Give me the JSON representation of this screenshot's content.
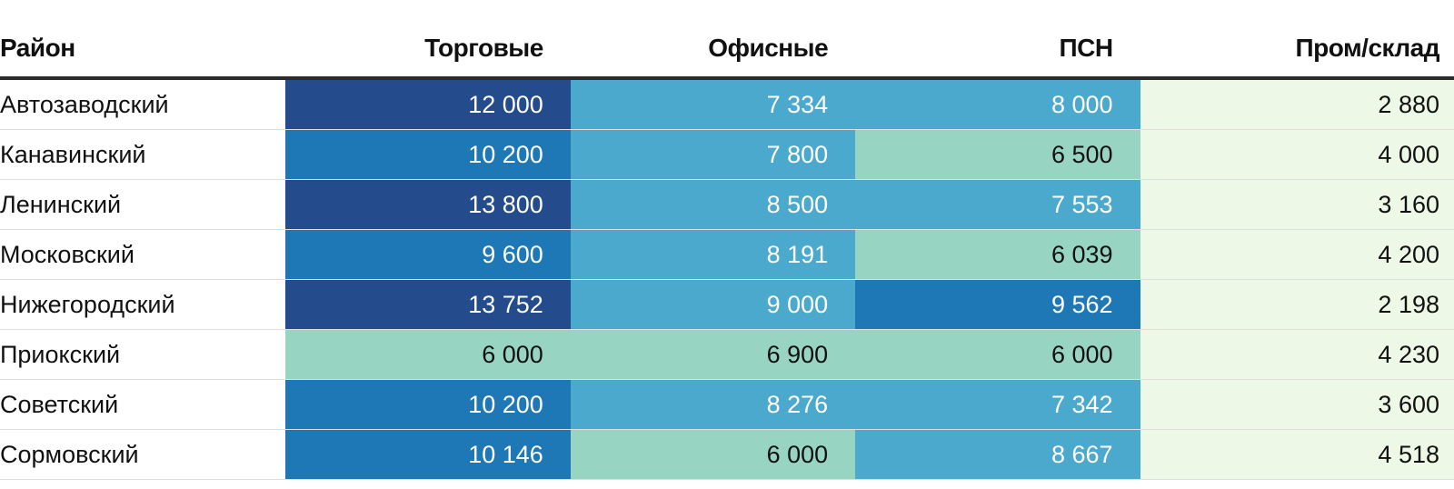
{
  "chart_data": {
    "type": "table",
    "headers": [
      "Район",
      "Торговые",
      "Офисные",
      "ПСН",
      "Пром/склад"
    ],
    "rows": [
      [
        "Автозаводский",
        "12 000",
        "7 334",
        "8 000",
        "2 880"
      ],
      [
        "Канавинский",
        "10 200",
        "7 800",
        "6 500",
        "4 000"
      ],
      [
        "Ленинский",
        "13 800",
        "8 500",
        "7 553",
        "3 160"
      ],
      [
        "Московский",
        "9 600",
        "8 191",
        "6 039",
        "4 200"
      ],
      [
        "Нижегородский",
        "13 752",
        "9 000",
        "9 562",
        "2 198"
      ],
      [
        "Приокский",
        "6 000",
        "6 900",
        "6 000",
        "4 230"
      ],
      [
        "Советский",
        "10 200",
        "8 276",
        "7 342",
        "3 600"
      ],
      [
        "Сормовский",
        "10 146",
        "6 000",
        "8 667",
        "4 518"
      ]
    ],
    "color_scale": {
      "bins": [
        {
          "max": 5000,
          "color": "#edf8e6",
          "text": "#111111"
        },
        {
          "max": 7000,
          "color": "#97d5c2",
          "text": "#111111"
        },
        {
          "max": 9500,
          "color": "#4aa9cc",
          "text": "#ffffff"
        },
        {
          "max": 11000,
          "color": "#1f78b6",
          "text": "#ffffff"
        },
        {
          "max": 99999,
          "color": "#244b8b",
          "text": "#ffffff"
        }
      ]
    }
  }
}
